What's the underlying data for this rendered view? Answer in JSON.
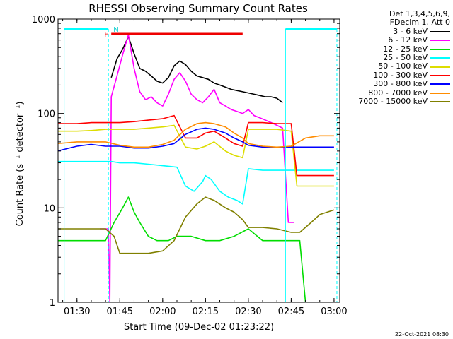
{
  "chart_data": {
    "type": "line",
    "title": "RHESSI Observing Summary Count Rates",
    "xlabel": "Start Time (09-Dec-02 01:23:22)",
    "ylabel": "Count Rate (s⁻¹ detector⁻¹)",
    "yscale": "log",
    "ylim": [
      1,
      1000
    ],
    "xlim": [
      "01:23:22",
      "03:02:00"
    ],
    "x_ticks": [
      "01:30",
      "01:45",
      "02:00",
      "02:15",
      "02:30",
      "02:45",
      "03:00"
    ],
    "y_ticks": [
      "1",
      "10",
      "100",
      "1000"
    ],
    "legend_header": [
      "Det 1,3,4,5,6,9,",
      "FDecim 1, Att 0"
    ],
    "annotations": {
      "flare_flag": "F",
      "night_flag": "N"
    },
    "series": [
      {
        "name": "3 - 6 keV",
        "color": "#000000",
        "x": [
          "01:42",
          "01:44",
          "01:46",
          "01:48",
          "01:50",
          "01:52",
          "01:54",
          "01:56",
          "01:58",
          "02:00",
          "02:02",
          "02:04",
          "02:06",
          "02:08",
          "02:10",
          "02:12",
          "02:14",
          "02:16",
          "02:18",
          "02:20",
          "02:22",
          "02:24",
          "02:26",
          "02:28",
          "02:30",
          "02:32",
          "02:34",
          "02:36",
          "02:38",
          "02:40",
          "02:42"
        ],
        "values": [
          240,
          380,
          480,
          650,
          430,
          300,
          280,
          250,
          220,
          210,
          240,
          320,
          360,
          330,
          280,
          250,
          240,
          230,
          210,
          200,
          190,
          180,
          175,
          170,
          165,
          160,
          155,
          150,
          150,
          145,
          130
        ]
      },
      {
        "name": "6 - 12 keV",
        "color": "#ff00ff",
        "x": [
          "01:38",
          "01:41",
          "01:41.5",
          "01:42",
          "01:44",
          "01:46",
          "01:48",
          "01:50",
          "01:52",
          "01:54",
          "01:56",
          "01:58",
          "02:00",
          "02:02",
          "02:04",
          "02:06",
          "02:08",
          "02:10",
          "02:12",
          "02:14",
          "02:16",
          "02:18",
          "02:20",
          "02:22",
          "02:24",
          "02:26",
          "02:28",
          "02:30",
          "02:32",
          "02:34",
          "02:36",
          "02:38",
          "02:40",
          "02:42",
          "02:44",
          "02:46"
        ],
        "values": [
          6,
          6,
          1,
          150,
          250,
          420,
          680,
          300,
          170,
          140,
          150,
          130,
          120,
          160,
          230,
          270,
          220,
          160,
          140,
          130,
          150,
          180,
          130,
          120,
          110,
          105,
          100,
          110,
          95,
          90,
          85,
          80,
          75,
          70,
          7,
          7
        ]
      },
      {
        "name": "12 - 25 keV",
        "color": "#00dd00",
        "x": [
          "01:23",
          "01:30",
          "01:35",
          "01:40",
          "01:43",
          "01:46",
          "01:48",
          "01:50",
          "01:52",
          "01:55",
          "01:58",
          "02:00",
          "02:02",
          "02:05",
          "02:10",
          "02:15",
          "02:20",
          "02:25",
          "02:30",
          "02:35",
          "02:40",
          "02:45",
          "02:48",
          "02:50",
          "02:53",
          "02:55",
          "02:58",
          "03:00"
        ],
        "values": [
          4.5,
          4.5,
          4.5,
          4.5,
          7,
          10,
          13,
          9,
          7,
          5,
          4.5,
          4.5,
          4.5,
          5,
          5,
          4.5,
          4.5,
          5,
          6,
          4.5,
          4.5,
          4.5,
          4.5,
          1,
          1,
          1,
          1,
          1
        ]
      },
      {
        "name": "25 - 50 keV",
        "color": "#00ffff",
        "x": [
          "01:23",
          "01:30",
          "01:35",
          "01:40",
          "01:42",
          "01:45",
          "01:50",
          "01:55",
          "02:00",
          "02:05",
          "02:08",
          "02:11",
          "02:14",
          "02:15",
          "02:17",
          "02:20",
          "02:23",
          "02:26",
          "02:28",
          "02:30",
          "02:35",
          "02:40",
          "02:45",
          "02:50",
          "02:55",
          "03:00"
        ],
        "values": [
          31,
          31,
          31,
          31,
          31,
          30,
          30,
          29,
          28,
          27,
          17,
          15,
          19,
          22,
          20,
          15,
          13,
          12,
          11,
          26,
          25,
          25,
          25,
          25,
          25,
          25
        ]
      },
      {
        "name": "50 - 100 keV",
        "color": "#dddd00",
        "x": [
          "01:23",
          "01:30",
          "01:35",
          "01:40",
          "01:45",
          "01:50",
          "01:55",
          "02:00",
          "02:04",
          "02:08",
          "02:12",
          "02:15",
          "02:18",
          "02:22",
          "02:25",
          "02:28",
          "02:30",
          "02:35",
          "02:40",
          "02:45",
          "02:47",
          "02:50",
          "02:55",
          "03:00"
        ],
        "values": [
          65,
          65,
          66,
          68,
          68,
          68,
          70,
          72,
          75,
          44,
          42,
          45,
          50,
          40,
          36,
          34,
          68,
          68,
          68,
          65,
          17,
          17,
          17,
          17
        ]
      },
      {
        "name": "100 - 300 keV",
        "color": "#ff0000",
        "x": [
          "01:23",
          "01:30",
          "01:35",
          "01:40",
          "01:45",
          "01:50",
          "01:55",
          "02:00",
          "02:04",
          "02:08",
          "02:12",
          "02:15",
          "02:18",
          "02:22",
          "02:25",
          "02:28",
          "02:30",
          "02:35",
          "02:40",
          "02:45",
          "02:47",
          "02:50",
          "02:55",
          "03:00"
        ],
        "values": [
          78,
          78,
          80,
          80,
          80,
          82,
          85,
          88,
          95,
          55,
          55,
          62,
          65,
          55,
          48,
          45,
          80,
          80,
          78,
          78,
          22,
          22,
          22,
          22
        ]
      },
      {
        "name": "300 - 800 keV",
        "color": "#0000ff",
        "x": [
          "01:23",
          "01:30",
          "01:35",
          "01:40",
          "01:45",
          "01:50",
          "01:55",
          "02:00",
          "02:04",
          "02:08",
          "02:12",
          "02:15",
          "02:18",
          "02:22",
          "02:25",
          "02:28",
          "02:30",
          "02:35",
          "02:40",
          "02:45",
          "02:50",
          "02:55",
          "03:00"
        ],
        "values": [
          40,
          45,
          47,
          45,
          45,
          43,
          43,
          45,
          48,
          60,
          68,
          70,
          68,
          62,
          55,
          50,
          46,
          44,
          44,
          44,
          44,
          44,
          44
        ]
      },
      {
        "name": "800 - 7000 keV",
        "color": "#ff8c00",
        "x": [
          "01:23",
          "01:30",
          "01:35",
          "01:40",
          "01:45",
          "01:50",
          "01:55",
          "02:00",
          "02:04",
          "02:08",
          "02:12",
          "02:15",
          "02:18",
          "02:22",
          "02:25",
          "02:28",
          "02:30",
          "02:35",
          "02:40",
          "02:45",
          "02:50",
          "02:55",
          "03:00"
        ],
        "values": [
          48,
          50,
          50,
          50,
          46,
          44,
          44,
          47,
          52,
          68,
          78,
          80,
          78,
          72,
          62,
          55,
          48,
          45,
          44,
          45,
          55,
          58,
          58
        ]
      },
      {
        "name": "7000 - 15000 keV",
        "color": "#808000",
        "x": [
          "01:23",
          "01:30",
          "01:35",
          "01:40",
          "01:43",
          "01:45",
          "01:50",
          "01:55",
          "02:00",
          "02:04",
          "02:08",
          "02:12",
          "02:15",
          "02:18",
          "02:22",
          "02:25",
          "02:28",
          "02:30",
          "02:35",
          "02:40",
          "02:45",
          "02:48",
          "02:52",
          "02:55",
          "03:00"
        ],
        "values": [
          6,
          6,
          6,
          6,
          5,
          3.3,
          3.3,
          3.3,
          3.5,
          4.5,
          8,
          11,
          13,
          12,
          10,
          9,
          7.5,
          6.2,
          6.2,
          6,
          5.5,
          5.5,
          7,
          8.5,
          9.5
        ]
      }
    ]
  },
  "footer": {
    "timestamp": "22-Oct-2021 08:30"
  }
}
